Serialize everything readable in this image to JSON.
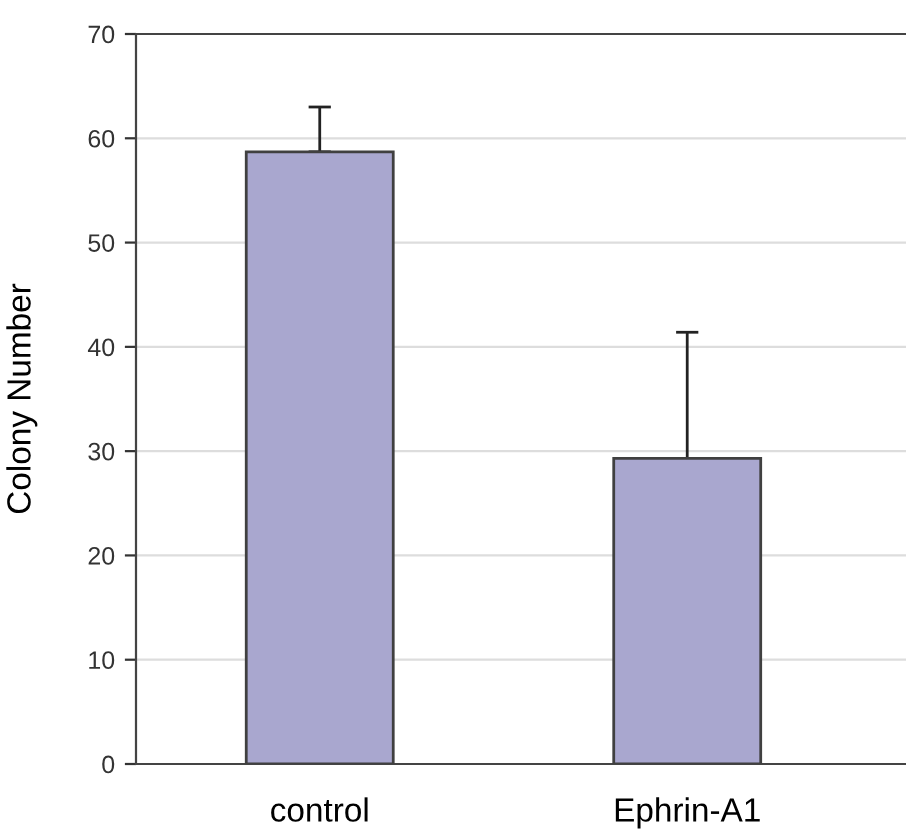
{
  "chart_data": {
    "type": "bar",
    "ylabel": "Colony Number",
    "categories": [
      "control",
      "Ephrin-A1"
    ],
    "values": [
      58.7,
      29.3
    ],
    "errors": [
      [
        58.7,
        63.0
      ],
      [
        29.3,
        41.4
      ]
    ],
    "color": "#a9a7cf",
    "ylim": [
      0,
      70
    ],
    "yticks": [
      0,
      10,
      20,
      30,
      40,
      50,
      60,
      70
    ],
    "grid": "y",
    "legend": false
  }
}
